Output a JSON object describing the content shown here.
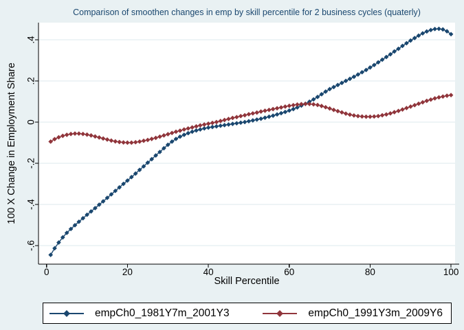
{
  "figure": {
    "background": "#e9f1f3",
    "plot_background": "#ffffff",
    "grid_color": "#dde9ed",
    "axis_color": "#000000",
    "title_color": "#1a476f"
  },
  "chart_data": {
    "type": "line",
    "title": "Comparison of smoothen changes in emp by skill percentile for 2 business cycles (quaterly)",
    "xlabel": "Skill Percentile",
    "ylabel": "100 X Change in Employment Share",
    "xlim": [
      -2,
      101
    ],
    "ylim": [
      -0.69,
      0.483
    ],
    "grid": "horizontal",
    "legend_position": "bottom",
    "x_ticks": {
      "values": [
        0,
        20,
        40,
        60,
        80,
        100
      ],
      "labels": [
        "0",
        "20",
        "40",
        "60",
        "80",
        "100"
      ]
    },
    "y_ticks": {
      "values": [
        0.4,
        0.2,
        0,
        -0.2,
        -0.4,
        -0.6
      ],
      "labels": [
        ".4",
        ".2",
        "0",
        "-.2",
        "-.4",
        "-.6"
      ]
    },
    "x": [
      1,
      2,
      3,
      4,
      5,
      6,
      7,
      8,
      9,
      10,
      11,
      12,
      13,
      14,
      15,
      16,
      17,
      18,
      19,
      20,
      21,
      22,
      23,
      24,
      25,
      26,
      27,
      28,
      29,
      30,
      31,
      32,
      33,
      34,
      35,
      36,
      37,
      38,
      39,
      40,
      41,
      42,
      43,
      44,
      45,
      46,
      47,
      48,
      49,
      50,
      51,
      52,
      53,
      54,
      55,
      56,
      57,
      58,
      59,
      60,
      61,
      62,
      63,
      64,
      65,
      66,
      67,
      68,
      69,
      70,
      71,
      72,
      73,
      74,
      75,
      76,
      77,
      78,
      79,
      80,
      81,
      82,
      83,
      84,
      85,
      86,
      87,
      88,
      89,
      90,
      91,
      92,
      93,
      94,
      95,
      96,
      97,
      98,
      99,
      100
    ],
    "series": [
      {
        "name": "empCh0_1981Y7m_2001Y3",
        "color": "#1a476f",
        "marker": "diamond",
        "values": [
          -0.645,
          -0.613,
          -0.585,
          -0.56,
          -0.538,
          -0.519,
          -0.501,
          -0.484,
          -0.467,
          -0.45,
          -0.434,
          -0.418,
          -0.401,
          -0.385,
          -0.368,
          -0.351,
          -0.334,
          -0.317,
          -0.3,
          -0.284,
          -0.267,
          -0.25,
          -0.232,
          -0.215,
          -0.197,
          -0.18,
          -0.162,
          -0.145,
          -0.127,
          -0.11,
          -0.095,
          -0.082,
          -0.071,
          -0.062,
          -0.054,
          -0.047,
          -0.041,
          -0.036,
          -0.031,
          -0.027,
          -0.024,
          -0.021,
          -0.018,
          -0.015,
          -0.012,
          -0.009,
          -0.006,
          -0.003,
          0.0,
          0.004,
          0.008,
          0.012,
          0.016,
          0.021,
          0.026,
          0.031,
          0.037,
          0.043,
          0.049,
          0.056,
          0.063,
          0.071,
          0.08,
          0.089,
          0.099,
          0.11,
          0.122,
          0.135,
          0.148,
          0.16,
          0.17,
          0.18,
          0.19,
          0.2,
          0.21,
          0.22,
          0.231,
          0.242,
          0.253,
          0.265,
          0.277,
          0.29,
          0.303,
          0.316,
          0.329,
          0.343,
          0.356,
          0.37,
          0.383,
          0.396,
          0.408,
          0.42,
          0.431,
          0.44,
          0.447,
          0.452,
          0.453,
          0.45,
          0.441,
          0.427
        ]
      },
      {
        "name": "empCh0_1991Y3m_2009Y6",
        "color": "#90353b",
        "marker": "diamond",
        "values": [
          -0.095,
          -0.083,
          -0.074,
          -0.067,
          -0.062,
          -0.058,
          -0.056,
          -0.056,
          -0.058,
          -0.061,
          -0.065,
          -0.07,
          -0.075,
          -0.08,
          -0.085,
          -0.09,
          -0.094,
          -0.097,
          -0.099,
          -0.1,
          -0.1,
          -0.098,
          -0.095,
          -0.091,
          -0.087,
          -0.082,
          -0.077,
          -0.071,
          -0.065,
          -0.059,
          -0.053,
          -0.047,
          -0.042,
          -0.036,
          -0.031,
          -0.026,
          -0.021,
          -0.016,
          -0.012,
          -0.008,
          -0.004,
          0.0,
          0.005,
          0.01,
          0.015,
          0.02,
          0.024,
          0.029,
          0.033,
          0.038,
          0.042,
          0.046,
          0.051,
          0.055,
          0.059,
          0.063,
          0.067,
          0.071,
          0.075,
          0.079,
          0.082,
          0.085,
          0.087,
          0.088,
          0.088,
          0.086,
          0.083,
          0.078,
          0.072,
          0.066,
          0.059,
          0.053,
          0.047,
          0.041,
          0.036,
          0.032,
          0.029,
          0.027,
          0.026,
          0.026,
          0.027,
          0.029,
          0.033,
          0.037,
          0.042,
          0.048,
          0.054,
          0.061,
          0.068,
          0.075,
          0.082,
          0.089,
          0.096,
          0.103,
          0.109,
          0.115,
          0.12,
          0.124,
          0.128,
          0.131
        ]
      }
    ]
  },
  "legend": {
    "entries": [
      {
        "label": "empCh0_1981Y7m_2001Y3"
      },
      {
        "label": "empCh0_1991Y3m_2009Y6"
      }
    ]
  }
}
